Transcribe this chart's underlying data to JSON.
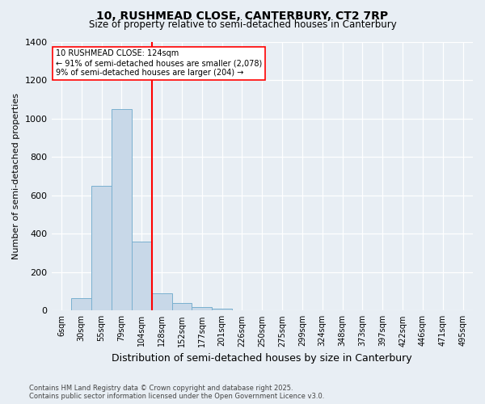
{
  "title1": "10, RUSHMEAD CLOSE, CANTERBURY, CT2 7RP",
  "title2": "Size of property relative to semi-detached houses in Canterbury",
  "xlabel": "Distribution of semi-detached houses by size in Canterbury",
  "ylabel": "Number of semi-detached properties",
  "categories": [
    "6sqm",
    "30sqm",
    "55sqm",
    "79sqm",
    "104sqm",
    "128sqm",
    "152sqm",
    "177sqm",
    "201sqm",
    "226sqm",
    "250sqm",
    "275sqm",
    "299sqm",
    "324sqm",
    "348sqm",
    "373sqm",
    "397sqm",
    "422sqm",
    "446sqm",
    "471sqm",
    "495sqm"
  ],
  "values": [
    0,
    65,
    650,
    1050,
    360,
    90,
    40,
    20,
    8,
    0,
    0,
    0,
    0,
    0,
    0,
    0,
    0,
    0,
    0,
    0,
    0
  ],
  "bar_color": "#c8d8e8",
  "bar_edge_color": "#7ab0d0",
  "red_line_x": 5,
  "annotation_line1": "10 RUSHMEAD CLOSE: 124sqm",
  "annotation_line2": "← 91% of semi-detached houses are smaller (2,078)",
  "annotation_line3": "9% of semi-detached houses are larger (204) →",
  "ylim": [
    0,
    1400
  ],
  "yticks": [
    0,
    200,
    400,
    600,
    800,
    1000,
    1200,
    1400
  ],
  "bg_color": "#e8eef4",
  "footer1": "Contains HM Land Registry data © Crown copyright and database right 2025.",
  "footer2": "Contains public sector information licensed under the Open Government Licence v3.0."
}
